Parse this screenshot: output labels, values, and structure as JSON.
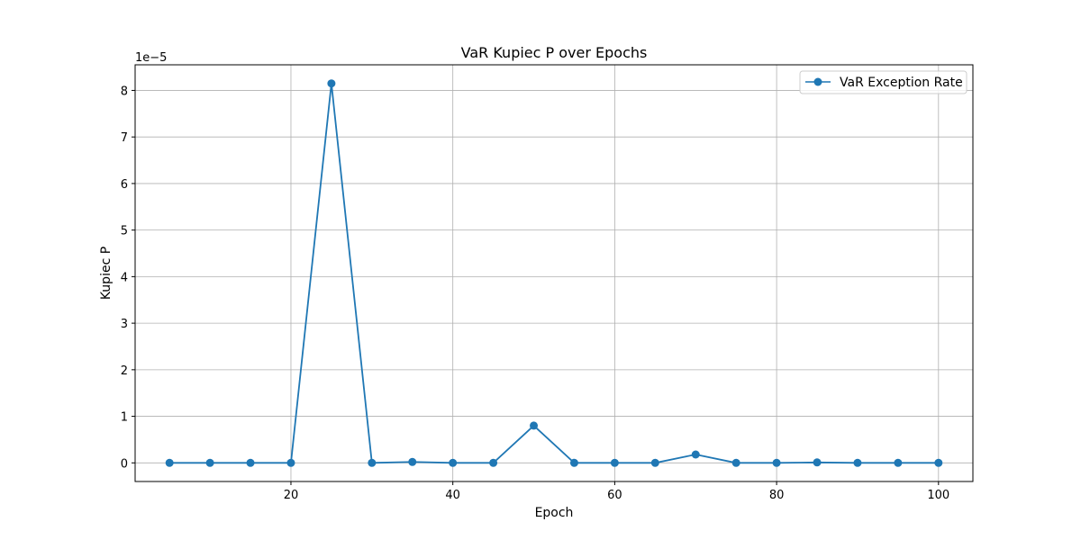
{
  "colors": {
    "series": "#1f77b4",
    "grid": "#b0b0b0",
    "axis": "#000000",
    "background": "#ffffff"
  },
  "chart_data": {
    "type": "line",
    "title": "VaR Kupiec P over Epochs",
    "xlabel": "Epoch",
    "ylabel": "Kupiec P",
    "y_scale_label": "1e−5",
    "y_scale_factor": 1e-05,
    "xlim": [
      0.75,
      104.25
    ],
    "ylim": [
      -0.4,
      8.55
    ],
    "x_ticks": [
      20,
      40,
      60,
      80,
      100
    ],
    "y_ticks": [
      0,
      1,
      2,
      3,
      4,
      5,
      6,
      7,
      8
    ],
    "grid": true,
    "legend_position": "top-right",
    "series": [
      {
        "name": "VaR Exception Rate",
        "marker": "circle",
        "x": [
          5,
          10,
          15,
          20,
          25,
          30,
          35,
          40,
          45,
          50,
          55,
          60,
          65,
          70,
          75,
          80,
          85,
          90,
          95,
          100
        ],
        "y": [
          0.0,
          0.0,
          0.0,
          0.0,
          8.15,
          0.0,
          0.02,
          0.0,
          0.0,
          0.8,
          0.0,
          0.0,
          0.0,
          0.18,
          0.0,
          0.0,
          0.01,
          0.0,
          0.0,
          0.0
        ]
      }
    ]
  }
}
